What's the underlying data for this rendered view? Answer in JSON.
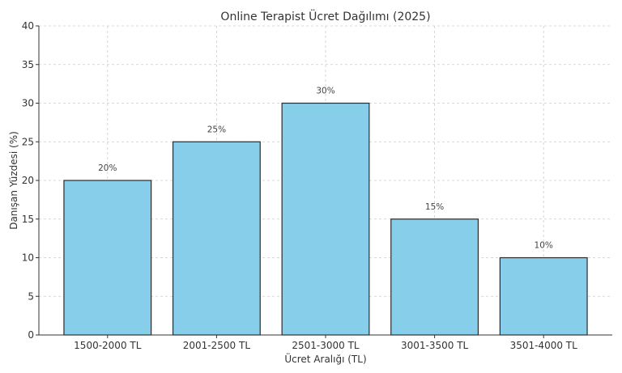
{
  "chart_data": {
    "type": "bar",
    "title": "Online Terapist Ücret Dağılımı (2025)",
    "xlabel": "Ücret Aralığı (TL)",
    "ylabel": "Danışan Yüzdesi (%)",
    "categories": [
      "1500-2000 TL",
      "2001-2500 TL",
      "2501-3000 TL",
      "3001-3500 TL",
      "3501-4000 TL"
    ],
    "values": [
      20,
      25,
      30,
      15,
      10
    ],
    "data_labels": [
      "20%",
      "25%",
      "30%",
      "15%",
      "10%"
    ],
    "ylim": [
      0,
      40
    ],
    "yticks": [
      0,
      5,
      10,
      15,
      20,
      25,
      30,
      35,
      40
    ],
    "grid": true,
    "legend": "none",
    "colors": {
      "bar_fill": "#87ceeb",
      "bar_edge": "#2b2b2b"
    }
  }
}
